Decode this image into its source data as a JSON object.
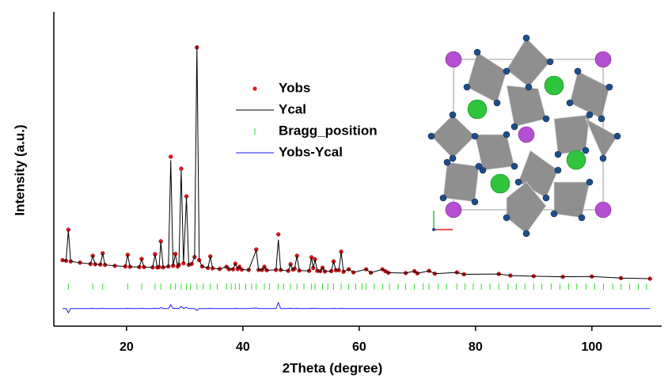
{
  "chart_data": {
    "type": "rietveld",
    "xlabel": "2Theta (degree)",
    "ylabel": "Intensity (a.u.)",
    "xlim": [
      7.5,
      112
    ],
    "xticks": [
      20,
      40,
      60,
      80,
      100
    ],
    "ylim": [
      0,
      100
    ],
    "legend": "upper-center",
    "x": [
      9.0,
      9.6,
      10.0,
      10.4,
      12,
      13.8,
      14.2,
      14.6,
      15.5,
      15.9,
      16.3,
      18,
      19.8,
      20.2,
      20.6,
      22.2,
      22.6,
      23.0,
      24.5,
      24.9,
      25.3,
      25.6,
      25.9,
      26.3,
      27.2,
      27.6,
      28.0,
      28.4,
      28.8,
      29.0,
      29.4,
      29.8,
      30.3,
      30.7,
      31.2,
      31.7,
      32.1,
      32.5,
      33,
      34.0,
      34.4,
      34.8,
      36,
      37.2,
      37.6,
      38.3,
      38.7,
      39.1,
      39.4,
      39.8,
      41,
      42.3,
      42.7,
      43.3,
      43.7,
      44.1,
      45.7,
      46.1,
      46.5,
      47.8,
      48.2,
      48.6,
      48.9,
      49.3,
      49.7,
      51.4,
      51.8,
      52.1,
      52.4,
      52.8,
      53.3,
      53.7,
      54.1,
      55.2,
      55.6,
      56.0,
      56.5,
      56.9,
      57.3,
      58.2,
      59,
      61.2,
      62,
      64.0,
      64.5,
      65,
      68,
      69.5,
      70,
      72.0,
      73,
      76.8,
      78,
      84,
      86,
      90,
      95,
      100,
      105,
      110
    ],
    "series": [
      {
        "name": "Yobs",
        "color": "#e8141b",
        "values": [
          21.0,
          20.8,
          30.7,
          20.6,
          20.2,
          19.8,
          22.4,
          19.7,
          19.6,
          23.2,
          19.5,
          19.2,
          19.0,
          22.7,
          18.9,
          18.8,
          21.4,
          18.8,
          18.7,
          22.9,
          18.7,
          18.8,
          27.0,
          18.7,
          19.0,
          53.9,
          19.2,
          23.0,
          19.0,
          19.5,
          50.1,
          20.0,
          41.3,
          19.5,
          19.8,
          22,
          88.7,
          21,
          19,
          18.5,
          22.2,
          18.4,
          18.2,
          18.9,
          18.1,
          18.1,
          19.9,
          18.2,
          18.9,
          18.0,
          17.9,
          24.4,
          17.9,
          17.9,
          18.9,
          17.8,
          17.9,
          29.2,
          17.9,
          17.6,
          19.7,
          18.0,
          18.3,
          22.4,
          17.7,
          17.6,
          21.9,
          18.5,
          21.3,
          17.6,
          17.5,
          18.6,
          17.4,
          17.5,
          20.6,
          17.8,
          17.8,
          23.7,
          17.3,
          18.1,
          17.1,
          18.1,
          17.0,
          18.1,
          17.5,
          17.0,
          16.9,
          17.5,
          16.8,
          17.6,
          16.7,
          17.1,
          16.5,
          16.6,
          16.1,
          15.9,
          15.7,
          15.8,
          15.3,
          15.1
        ]
      },
      {
        "name": "Ycal",
        "color": "#000000",
        "values": [
          21.0,
          20.8,
          30.4,
          20.6,
          20.2,
          19.8,
          22.3,
          19.7,
          19.6,
          23.1,
          19.5,
          19.2,
          19.0,
          22.6,
          18.9,
          18.8,
          21.3,
          18.8,
          18.7,
          22.8,
          18.7,
          18.8,
          26.8,
          18.7,
          19.0,
          52.8,
          19.2,
          22.9,
          19.0,
          19.5,
          49.6,
          20.0,
          41.0,
          19.5,
          19.8,
          22,
          89.2,
          21,
          19,
          18.5,
          22.1,
          18.4,
          18.2,
          18.9,
          18.1,
          18.1,
          19.8,
          18.2,
          18.9,
          18.0,
          17.9,
          24.2,
          17.9,
          17.9,
          18.9,
          17.8,
          17.9,
          27.5,
          17.9,
          17.6,
          19.6,
          18.0,
          18.3,
          22.3,
          17.7,
          17.6,
          21.8,
          18.5,
          21.2,
          17.6,
          17.5,
          18.6,
          17.4,
          17.5,
          20.5,
          17.8,
          17.8,
          23.6,
          17.3,
          18.1,
          17.1,
          18.1,
          17.0,
          18.1,
          17.5,
          17.0,
          16.9,
          17.5,
          16.8,
          17.6,
          16.7,
          17.1,
          16.5,
          16.6,
          16.1,
          15.9,
          15.7,
          15.8,
          15.3,
          15.1
        ]
      },
      {
        "name": "Bragg_position",
        "color": "#33dd33",
        "y": 12.6,
        "x": [
          10.0,
          14.2,
          15.9,
          20.2,
          22.6,
          24.9,
          25.9,
          27.6,
          28.4,
          29.4,
          30.3,
          31.0,
          32.1,
          33.2,
          34.4,
          35.6,
          37.2,
          38.0,
          38.7,
          39.4,
          40.5,
          41.5,
          42.3,
          43.7,
          44.6,
          46.1,
          47.0,
          48.2,
          49.3,
          50.5,
          51.8,
          52.4,
          53.7,
          54.6,
          55.6,
          56.9,
          58.2,
          59.4,
          60.5,
          61.2,
          62.6,
          64.0,
          65.2,
          66.7,
          68.0,
          69.5,
          71.0,
          72.0,
          73.6,
          75.0,
          76.8,
          78.2,
          79.6,
          81.0,
          82.5,
          84.0,
          85.6,
          87.0,
          88.5,
          90.0,
          91.4,
          93.0,
          94.5,
          96.0,
          97.4,
          99.0,
          100.5,
          102.0,
          103.6,
          105.0,
          106.5,
          108.0,
          109.4
        ]
      },
      {
        "name": "Yobs-Ycal",
        "color": "#1a1aff",
        "values": [
          5.6,
          5.6,
          4.3,
          5.6,
          5.6,
          5.6,
          5.7,
          5.6,
          5.6,
          5.7,
          5.6,
          5.6,
          5.6,
          5.7,
          5.6,
          5.6,
          5.7,
          5.6,
          5.6,
          5.7,
          5.6,
          5.6,
          5.9,
          5.6,
          5.6,
          6.8,
          5.6,
          5.7,
          5.6,
          5.6,
          6.3,
          5.6,
          6.0,
          5.6,
          5.6,
          5.6,
          5.0,
          5.6,
          5.6,
          5.6,
          5.7,
          5.6,
          5.6,
          5.6,
          5.6,
          5.6,
          5.7,
          5.6,
          5.6,
          5.6,
          5.6,
          5.8,
          5.6,
          5.6,
          5.6,
          5.6,
          5.6,
          7.5,
          5.6,
          5.6,
          5.7,
          5.6,
          5.6,
          5.7,
          5.6,
          5.6,
          5.7,
          5.6,
          5.7,
          5.6,
          5.6,
          5.6,
          5.6,
          5.6,
          5.7,
          5.6,
          5.6,
          5.7,
          5.6,
          5.6,
          5.6,
          5.6,
          5.6,
          5.6,
          5.6,
          5.6,
          5.6,
          5.6,
          5.6,
          5.6,
          5.6,
          5.6,
          5.6,
          5.6,
          5.6,
          5.6,
          5.6,
          5.6,
          5.6,
          5.6
        ]
      }
    ]
  }
}
